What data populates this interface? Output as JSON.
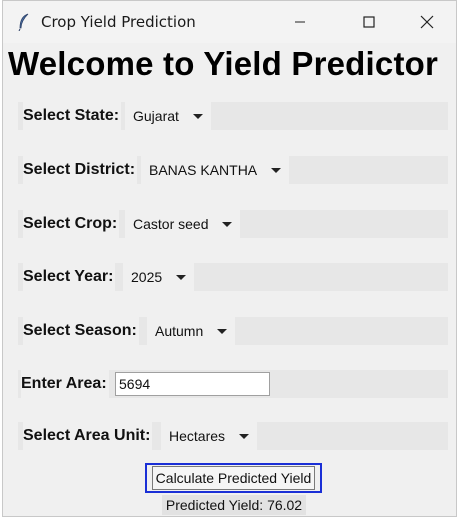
{
  "window": {
    "title": "Crop Yield Prediction",
    "icon": "feather-icon"
  },
  "heading": "Welcome to Yield Predictor",
  "form": {
    "state": {
      "label": "Select State:",
      "value": "Gujarat"
    },
    "district": {
      "label": "Select District:",
      "value": "BANAS KANTHA"
    },
    "crop": {
      "label": "Select Crop:",
      "value": "Castor seed"
    },
    "year": {
      "label": "Select Year:",
      "value": "2025"
    },
    "season": {
      "label": "Select Season:",
      "value": "Autumn"
    },
    "area": {
      "label": "Enter Area:",
      "value": "5694"
    },
    "area_unit": {
      "label": "Select Area Unit:",
      "value": "Hectares"
    }
  },
  "calculate_button": "Calculate Predicted Yield",
  "result": "Predicted Yield: 76.02",
  "colors": {
    "window_bg": "#f0f0f0",
    "row_bg": "#e7e7e7",
    "focus_border": "#1a2fd6"
  }
}
